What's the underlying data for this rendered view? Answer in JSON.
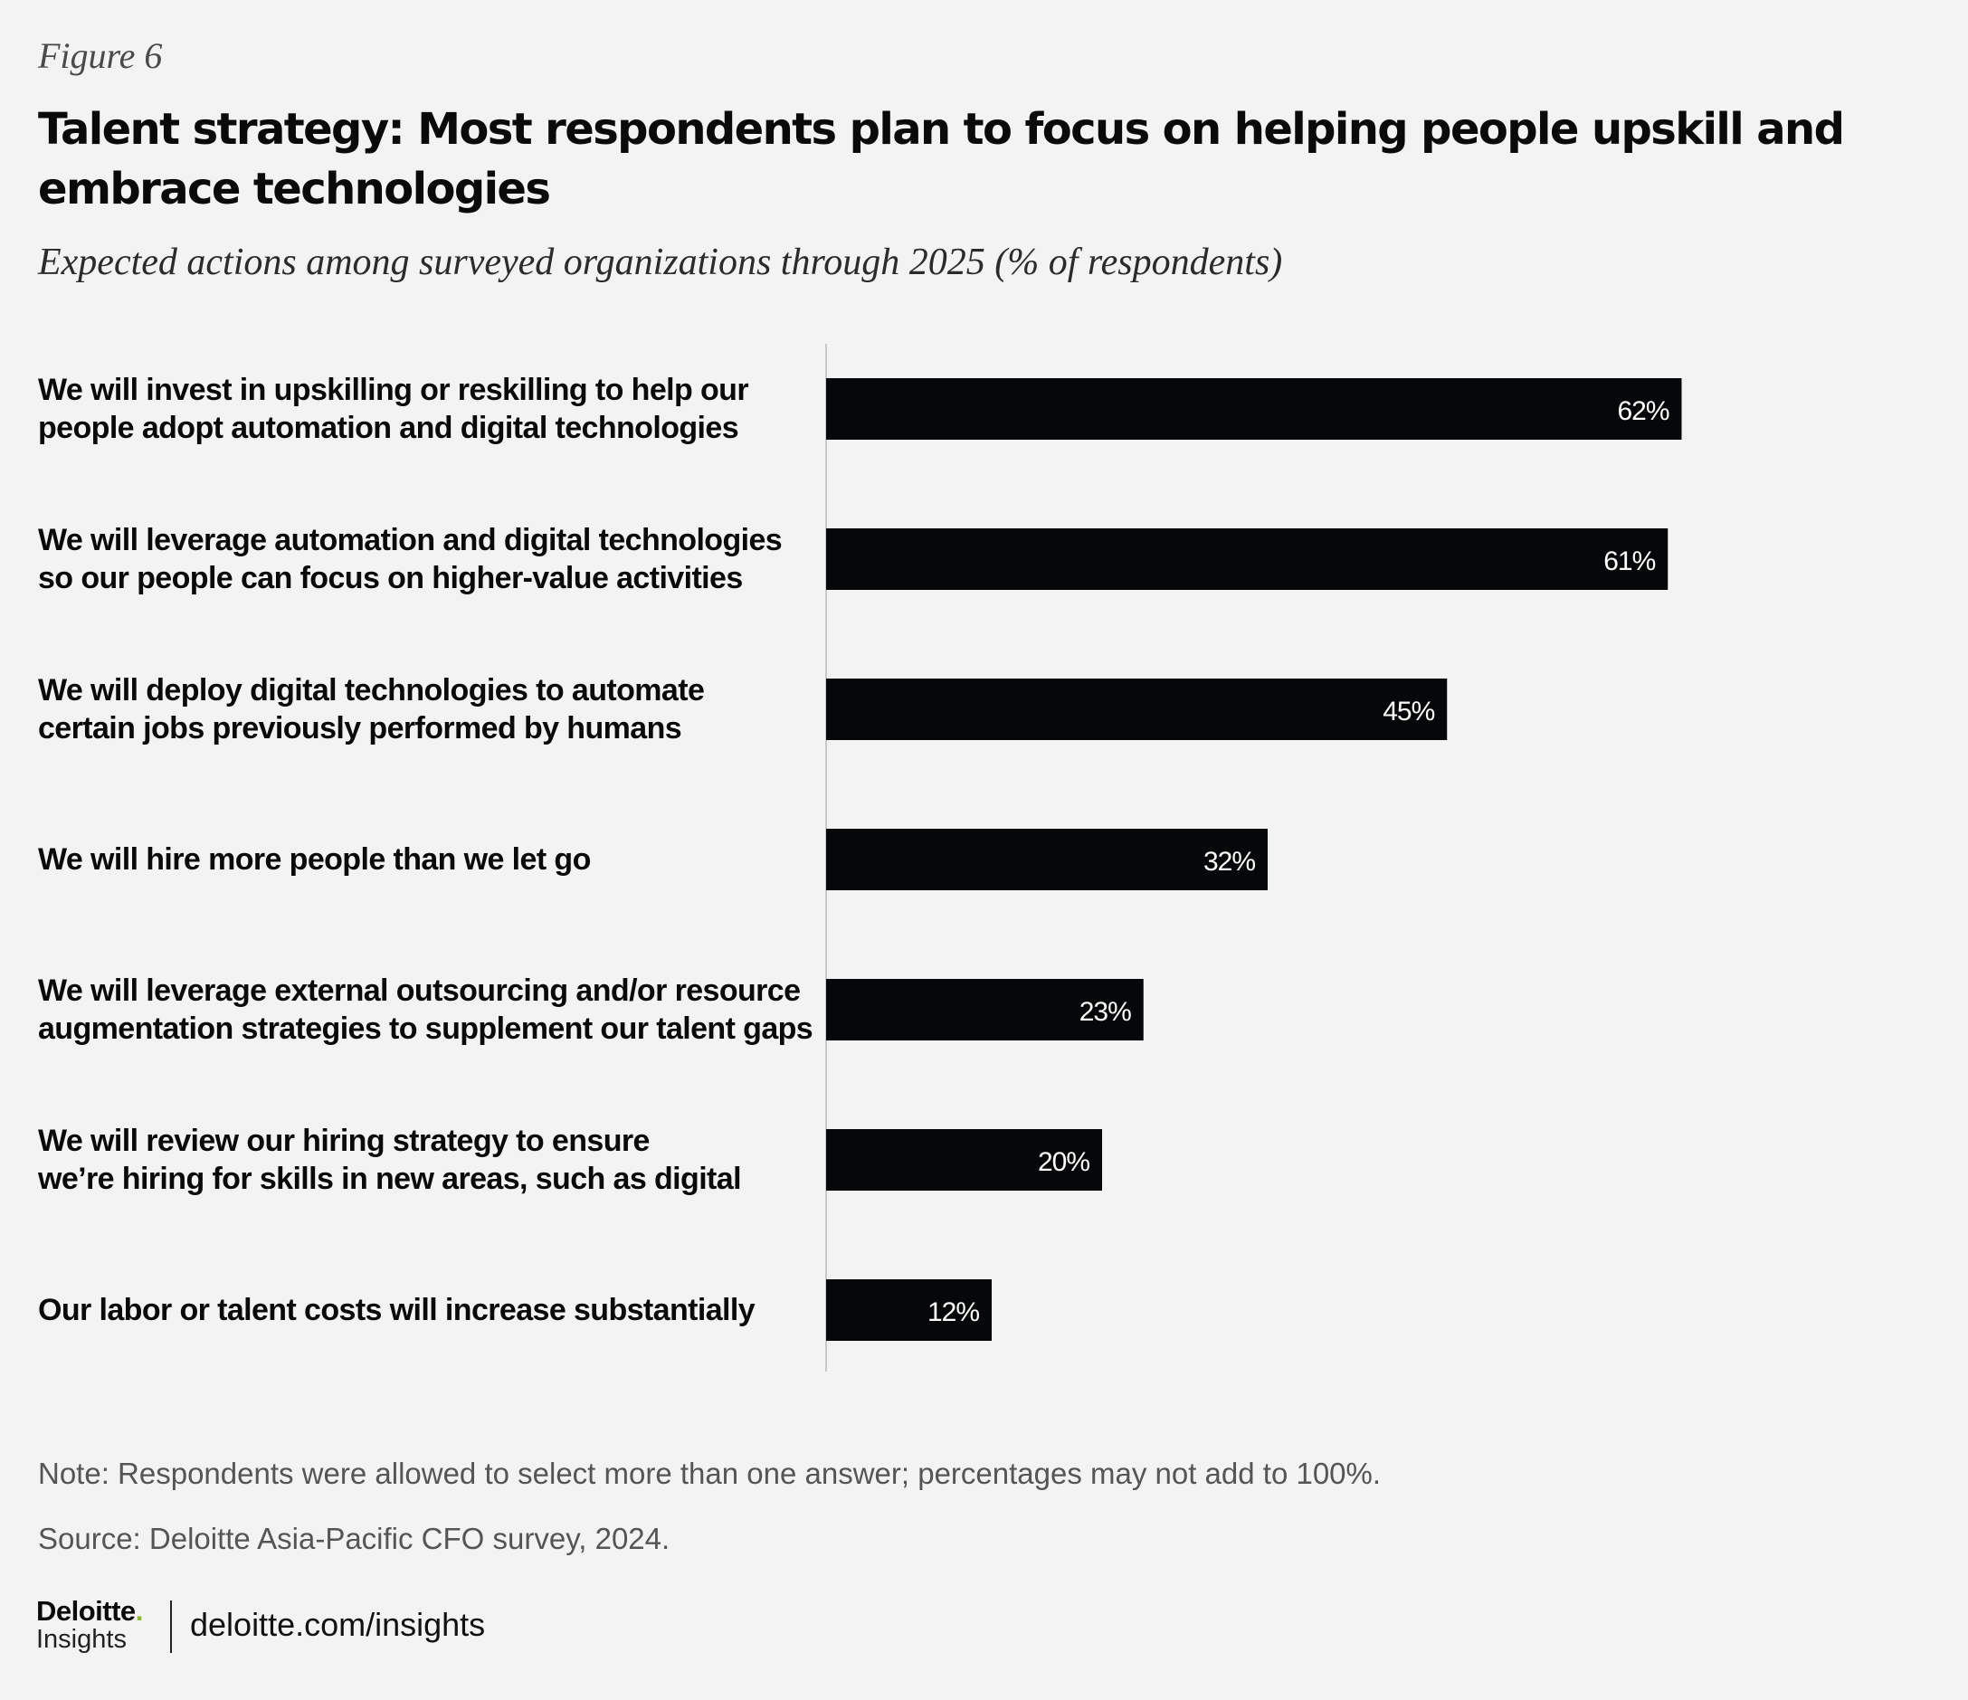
{
  "figure_label": "Figure 6",
  "title": "Talent strategy: Most respondents plan to focus on helping people upskill and embrace technologies",
  "subtitle": "Expected actions among surveyed organizations through 2025 (% of respondents)",
  "chart_data": {
    "type": "bar",
    "orientation": "horizontal",
    "categories": [
      "We will invest in upskilling or reskilling to help our\npeople adopt automation and digital technologies",
      "We will leverage automation and digital technologies\nso our people can focus on higher-value activities",
      "We will deploy digital technologies to automate\ncertain jobs previously performed by humans",
      "We will hire more people than we let go",
      "We will leverage external outsourcing and/or resource\naugmentation strategies to supplement our talent gaps",
      "We will review our hiring strategy to ensure\nwe’re hiring for skills in new areas, such as digital",
      "Our labor or talent costs will increase substantially"
    ],
    "values": [
      62,
      61,
      45,
      32,
      23,
      20,
      12
    ],
    "data_labels": [
      "62%",
      "61%",
      "45%",
      "32%",
      "23%",
      "20%",
      "12%"
    ],
    "xlim": [
      0,
      100
    ],
    "grid": false,
    "legend": "none",
    "bar_color": "#050708",
    "label_color": "#ffffff"
  },
  "note": "Note: Respondents were allowed to select more than one answer; percentages may not add to 100%.",
  "source": "Source: Deloitte Asia-Pacific CFO survey, 2024.",
  "footer": {
    "logo_word": "Deloitte",
    "logo_dot": ".",
    "logo_sub": "Insights",
    "url": "deloitte.com/insights"
  }
}
